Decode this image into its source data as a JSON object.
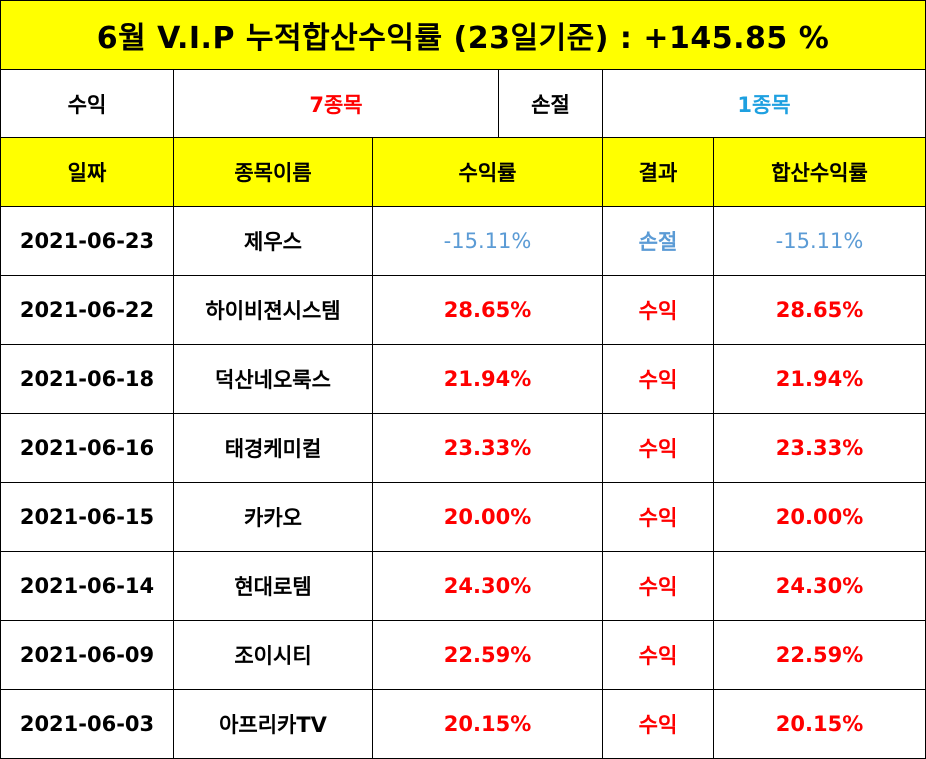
{
  "title": "6월 V.I.P 누적합산수익률 (23일기준) : +145.85 %",
  "summary": {
    "profit_label": "수익",
    "profit_value": "7종목",
    "loss_label": "손절",
    "loss_value": "1종목"
  },
  "headers": [
    "일짜",
    "종목이름",
    "수익률",
    "결과",
    "합산수익률"
  ],
  "rows": [
    {
      "date": "2021-06-23",
      "name": "제우스",
      "rate": "-15.11%",
      "result": "손절",
      "sum": "-15.11%"
    },
    {
      "date": "2021-06-22",
      "name": "하이비젼시스템",
      "rate": "28.65%",
      "result": "수익",
      "sum": "28.65%"
    },
    {
      "date": "2021-06-18",
      "name": "덕산네오룩스",
      "rate": "21.94%",
      "result": "수익",
      "sum": "21.94%"
    },
    {
      "date": "2021-06-16",
      "name": "태경케미컬",
      "rate": "23.33%",
      "result": "수익",
      "sum": "23.33%"
    },
    {
      "date": "2021-06-15",
      "name": "카카오",
      "rate": "20.00%",
      "result": "수익",
      "sum": "20.00%"
    },
    {
      "date": "2021-06-14",
      "name": "현대로템",
      "rate": "24.30%",
      "result": "수익",
      "sum": "24.30%"
    },
    {
      "date": "2021-06-09",
      "name": "조이시티",
      "rate": "22.59%",
      "result": "수익",
      "sum": "22.59%"
    },
    {
      "date": "2021-06-03",
      "name": "아프리카TV",
      "rate": "20.15%",
      "result": "수익",
      "sum": "20.15%"
    }
  ],
  "colors": {
    "header_bg": "#ffff00",
    "profit": "#ff0000",
    "loss": "#5b9bd5",
    "loss_count": "#1ea0e0"
  }
}
